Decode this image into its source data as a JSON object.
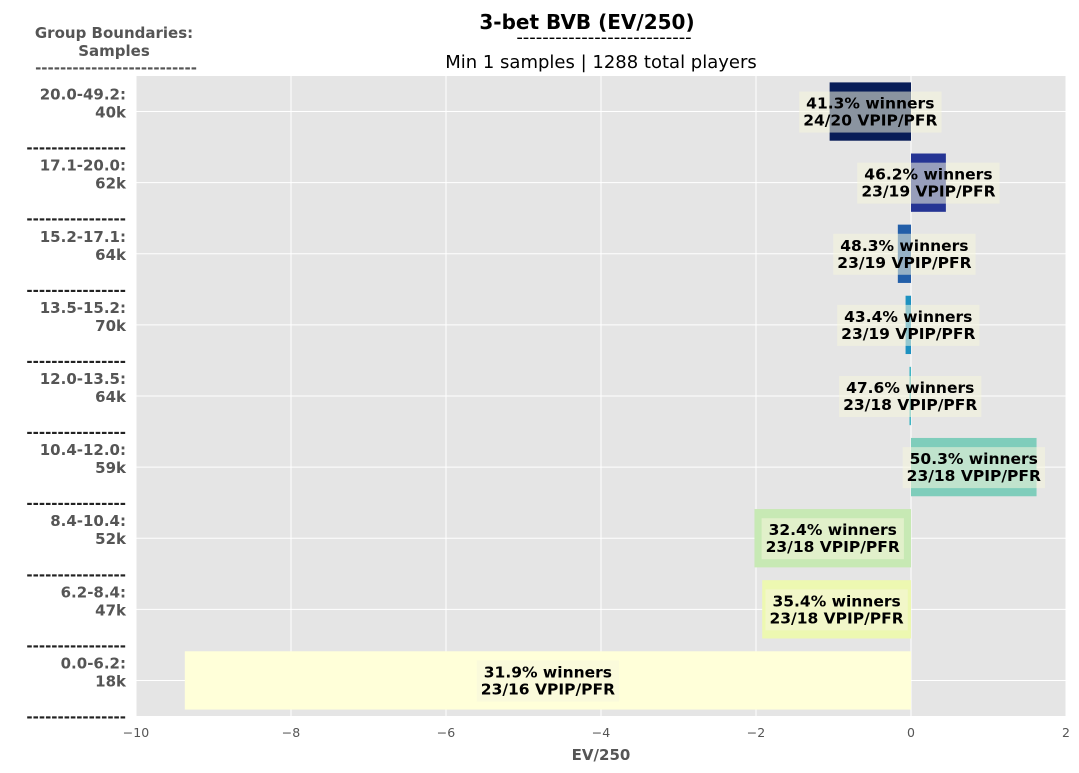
{
  "chart_data": {
    "type": "bar",
    "orientation": "horizontal",
    "title": "3-bet BVB (EV/250)",
    "title_rule": "---------------------------",
    "subtitle": "Min 1 samples | 1288 total players",
    "corner_label": [
      "Group Boundaries:",
      "Samples"
    ],
    "corner_rule": "--------------------------",
    "group_separator": "----------------",
    "xlabel": "EV/250",
    "xlim": [
      -10,
      2
    ],
    "xticks": [
      -10,
      -8,
      -6,
      -4,
      -2,
      0,
      2
    ],
    "xtick_labels": [
      "−10",
      "−8",
      "−6",
      "−4",
      "−2",
      "0",
      "2"
    ],
    "grid": true,
    "groups": [
      {
        "range": "20.0-49.2:",
        "samples": "40k",
        "value": -1.05,
        "winners": "41.3% winners",
        "vpip_pfr": "24/20 VPIP/PFR",
        "color": "#081d58"
      },
      {
        "range": "17.1-20.0:",
        "samples": "62k",
        "value": 0.45,
        "winners": "46.2% winners",
        "vpip_pfr": "23/19 VPIP/PFR",
        "color": "#253494"
      },
      {
        "range": "15.2-17.1:",
        "samples": "64k",
        "value": -0.17,
        "winners": "48.3% winners",
        "vpip_pfr": "23/19 VPIP/PFR",
        "color": "#225ea8"
      },
      {
        "range": "13.5-15.2:",
        "samples": "70k",
        "value": -0.07,
        "winners": "43.4% winners",
        "vpip_pfr": "23/19 VPIP/PFR",
        "color": "#1d91c0"
      },
      {
        "range": "12.0-13.5:",
        "samples": "64k",
        "value": -0.02,
        "winners": "47.6% winners",
        "vpip_pfr": "23/18 VPIP/PFR",
        "color": "#41b6c4"
      },
      {
        "range": "10.4-12.0:",
        "samples": "59k",
        "value": 1.62,
        "winners": "50.3% winners",
        "vpip_pfr": "23/18 VPIP/PFR",
        "color": "#7fcdbb"
      },
      {
        "range": "8.4-10.4:",
        "samples": "52k",
        "value": -2.02,
        "winners": "32.4% winners",
        "vpip_pfr": "23/18 VPIP/PFR",
        "color": "#c7e9b4"
      },
      {
        "range": "6.2-8.4:",
        "samples": "47k",
        "value": -1.92,
        "winners": "35.4% winners",
        "vpip_pfr": "23/18 VPIP/PFR",
        "color": "#edf8b1"
      },
      {
        "range": "0.0-6.2:",
        "samples": "18k",
        "value": -9.37,
        "winners": "31.9% winners",
        "vpip_pfr": "23/16 VPIP/PFR",
        "color": "#ffffd9"
      }
    ]
  }
}
